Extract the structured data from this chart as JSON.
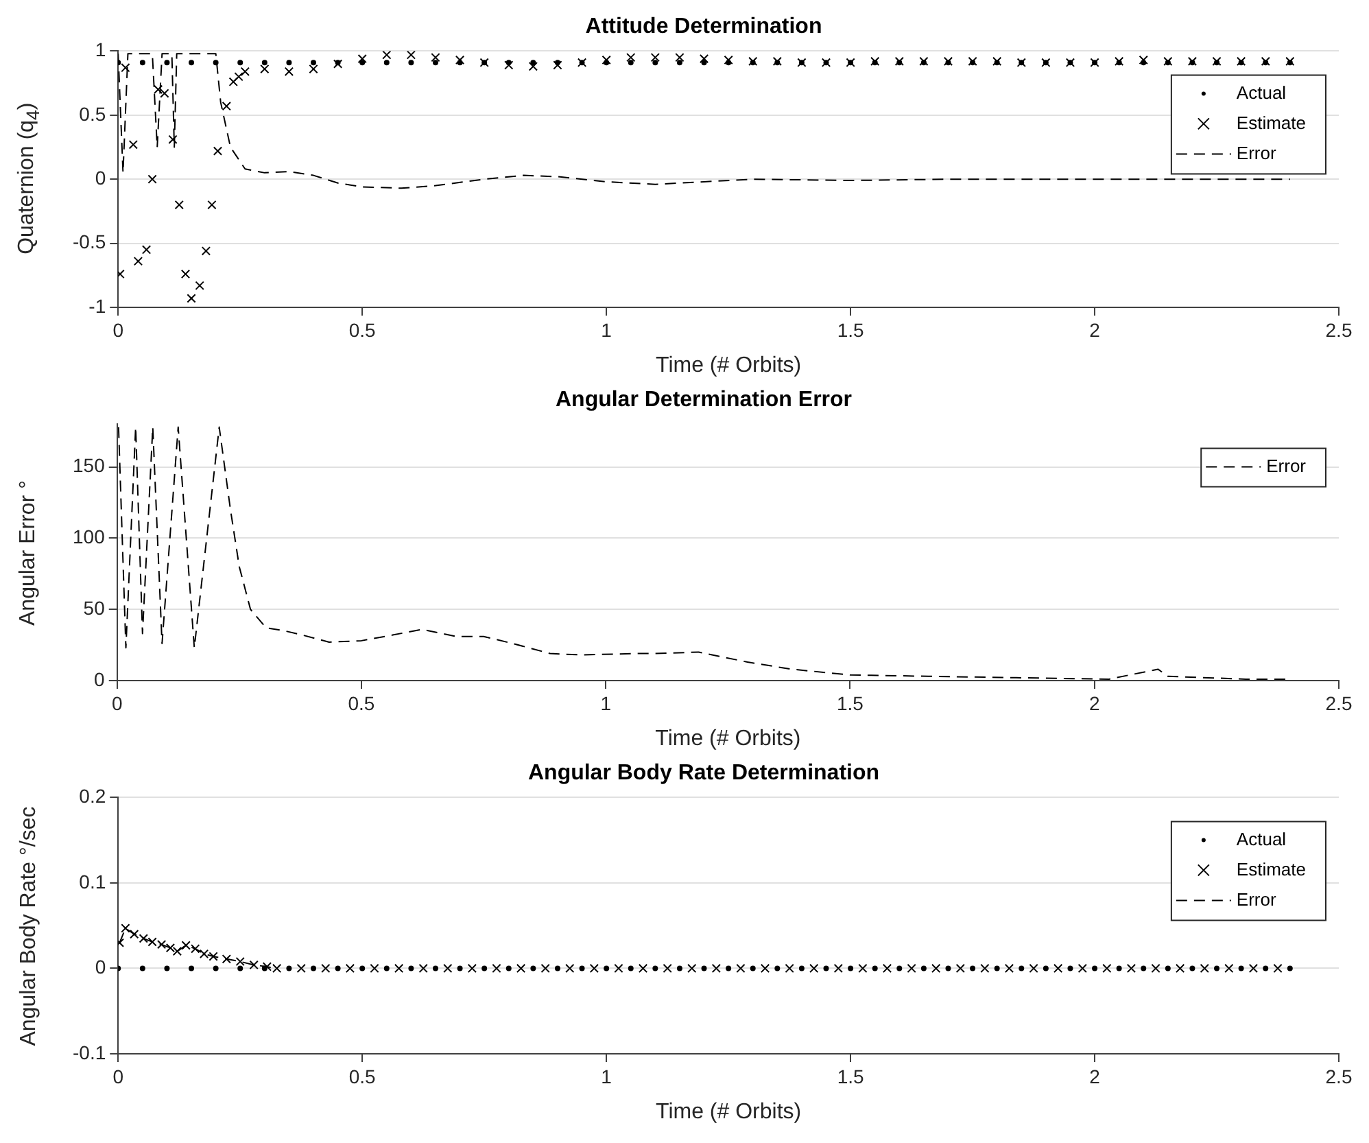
{
  "chart_data": [
    {
      "type": "scatter",
      "title": "Attitude Determination",
      "xlabel": "Time (# Orbits)",
      "ylabel": "Quaternion (q$_{4}$)",
      "xlim": [
        0,
        2.5
      ],
      "xticks": [
        0,
        0.5,
        1,
        1.5,
        2,
        2.5
      ],
      "ylim": [
        -1,
        1
      ],
      "yticks": [
        -1,
        -0.5,
        0,
        0.5,
        1
      ],
      "grid": "y",
      "legend": "top right",
      "series": [
        {
          "name": "Actual",
          "marker": "circle",
          "color": "#000000",
          "x": [
            0,
            0.05,
            0.1,
            0.15,
            0.2,
            0.25,
            0.3,
            0.35,
            0.4,
            0.45,
            0.5,
            0.55,
            0.6,
            0.65,
            0.7,
            0.75,
            0.8,
            0.85,
            0.9,
            0.95,
            1,
            1.05,
            1.1,
            1.15,
            1.2,
            1.25,
            1.3,
            1.35,
            1.4,
            1.45,
            1.5,
            1.55,
            1.6,
            1.65,
            1.7,
            1.75,
            1.8,
            1.85,
            1.9,
            1.95,
            2,
            2.05,
            2.1,
            2.15,
            2.2,
            2.25,
            2.3,
            2.35,
            2.4
          ],
          "values": [
            0.91,
            0.91,
            0.91,
            0.91,
            0.91,
            0.91,
            0.91,
            0.91,
            0.91,
            0.91,
            0.91,
            0.91,
            0.91,
            0.91,
            0.91,
            0.91,
            0.91,
            0.91,
            0.91,
            0.91,
            0.91,
            0.91,
            0.91,
            0.91,
            0.91,
            0.91,
            0.91,
            0.91,
            0.91,
            0.91,
            0.91,
            0.91,
            0.91,
            0.91,
            0.91,
            0.91,
            0.91,
            0.91,
            0.91,
            0.91,
            0.91,
            0.91,
            0.91,
            0.91,
            0.91,
            0.91,
            0.91,
            0.91,
            0.91
          ]
        },
        {
          "name": "Estimate",
          "marker": "cross",
          "color": "#000000",
          "x": [
            0.004,
            0.015,
            0.031,
            0.041,
            0.058,
            0.07,
            0.082,
            0.095,
            0.112,
            0.125,
            0.138,
            0.15,
            0.167,
            0.18,
            0.192,
            0.204,
            0.222,
            0.236,
            0.247,
            0.26,
            0.3,
            0.35,
            0.4,
            0.45,
            0.5,
            0.55,
            0.6,
            0.65,
            0.7,
            0.75,
            0.8,
            0.85,
            0.9,
            0.95,
            1,
            1.05,
            1.1,
            1.15,
            1.2,
            1.25,
            1.3,
            1.35,
            1.4,
            1.45,
            1.5,
            1.55,
            1.6,
            1.65,
            1.7,
            1.75,
            1.8,
            1.85,
            1.9,
            1.95,
            2,
            2.05,
            2.1,
            2.15,
            2.2,
            2.25,
            2.3,
            2.35,
            2.4
          ],
          "values": [
            -0.74,
            0.87,
            0.27,
            -0.64,
            -0.55,
            0,
            0.7,
            0.67,
            0.31,
            -0.2,
            -0.74,
            -0.93,
            -0.83,
            -0.56,
            -0.2,
            0.22,
            0.57,
            0.76,
            0.8,
            0.84,
            0.86,
            0.84,
            0.86,
            0.9,
            0.94,
            0.97,
            0.97,
            0.95,
            0.93,
            0.91,
            0.89,
            0.88,
            0.89,
            0.91,
            0.93,
            0.95,
            0.95,
            0.95,
            0.94,
            0.93,
            0.92,
            0.92,
            0.91,
            0.91,
            0.91,
            0.92,
            0.92,
            0.92,
            0.92,
            0.92,
            0.92,
            0.91,
            0.91,
            0.91,
            0.91,
            0.92,
            0.93,
            0.92,
            0.92,
            0.92,
            0.92,
            0.92,
            0.92
          ]
        },
        {
          "name": "Error",
          "type": "line",
          "line_style": "dashed",
          "marker": "none",
          "color": "#000000",
          "x": [
            0,
            0.01,
            0.02,
            0.07,
            0.08,
            0.09,
            0.11,
            0.115,
            0.12,
            0.2,
            0.21,
            0.23,
            0.26,
            0.3,
            0.35,
            0.4,
            0.45,
            0.5,
            0.58,
            0.65,
            0.75,
            0.83,
            0.9,
            1,
            1.1,
            1.2,
            1.3,
            1.5,
            1.7,
            2,
            2.4
          ],
          "values": [
            0.98,
            0.05,
            0.98,
            0.98,
            0.25,
            0.98,
            0.98,
            0.25,
            0.98,
            0.98,
            0.6,
            0.25,
            0.08,
            0.05,
            0.06,
            0.03,
            -0.03,
            -0.06,
            -0.07,
            -0.05,
            0,
            0.03,
            0.02,
            -0.02,
            -0.04,
            -0.02,
            0,
            -0.01,
            0,
            0,
            0
          ]
        }
      ]
    },
    {
      "type": "line",
      "title": "Angular Determination Error",
      "xlabel": "Time (# Orbits)",
      "ylabel": "Angular Error °",
      "xlim": [
        0,
        2.5
      ],
      "xticks": [
        0,
        0.5,
        1,
        1.5,
        2,
        2.5
      ],
      "ylim": [
        0,
        180
      ],
      "yticks": [
        0,
        50,
        100,
        150
      ],
      "grid": "y",
      "legend": "top right",
      "series": [
        {
          "name": "Error",
          "line_style": "dashed",
          "marker": "none",
          "color": "#000000",
          "x": [
            0.003,
            0.018,
            0.038,
            0.052,
            0.073,
            0.092,
            0.125,
            0.158,
            0.209,
            0.232,
            0.25,
            0.273,
            0.305,
            0.342,
            0.379,
            0.434,
            0.5,
            0.564,
            0.624,
            0.693,
            0.75,
            0.81,
            0.886,
            0.95,
            1.06,
            1.1,
            1.19,
            1.29,
            1.38,
            1.5,
            1.66,
            1.84,
            2.03,
            2.13,
            2.15,
            2.31,
            2.4
          ],
          "values": [
            178,
            23,
            178,
            33,
            178,
            26,
            178,
            23,
            178,
            120,
            80,
            50,
            37,
            35,
            32,
            27,
            28,
            32,
            36,
            31,
            31,
            26,
            19,
            18,
            19,
            19,
            20,
            13,
            8,
            4,
            3,
            2,
            1,
            8,
            3,
            1,
            1
          ]
        }
      ]
    },
    {
      "type": "scatter",
      "title": "Angular Body Rate Determination",
      "xlabel": "Time (# Orbits)",
      "ylabel": "Angular Body Rate °/sec",
      "xlim": [
        0,
        2.5
      ],
      "xticks": [
        0,
        0.5,
        1,
        1.5,
        2,
        2.5
      ],
      "ylim": [
        -0.1,
        0.2
      ],
      "yticks": [
        -0.1,
        0,
        0.1,
        0.2
      ],
      "grid": "y",
      "legend": "top right",
      "series": [
        {
          "name": "Actual",
          "marker": "circle",
          "color": "#000000",
          "x": [
            0,
            0.05,
            0.1,
            0.15,
            0.2,
            0.25,
            0.3,
            0.35,
            0.4,
            0.45,
            0.5,
            0.55,
            0.6,
            0.65,
            0.7,
            0.75,
            0.8,
            0.85,
            0.9,
            0.95,
            1,
            1.05,
            1.1,
            1.15,
            1.2,
            1.25,
            1.3,
            1.35,
            1.4,
            1.45,
            1.5,
            1.55,
            1.6,
            1.65,
            1.7,
            1.75,
            1.8,
            1.85,
            1.9,
            1.95,
            2,
            2.05,
            2.1,
            2.15,
            2.2,
            2.25,
            2.3,
            2.35,
            2.4
          ],
          "values": [
            0,
            0,
            0,
            0,
            0,
            0,
            0,
            0,
            0,
            0,
            0,
            0,
            0,
            0,
            0,
            0,
            0,
            0,
            0,
            0,
            0,
            0,
            0,
            0,
            0,
            0,
            0,
            0,
            0,
            0,
            0,
            0,
            0,
            0,
            0,
            0,
            0,
            0,
            0,
            0,
            0,
            0,
            0,
            0,
            0,
            0,
            0,
            0,
            0
          ]
        },
        {
          "name": "Estimate",
          "marker": "cross",
          "color": "#000000",
          "x": [
            0.003,
            0.015,
            0.033,
            0.052,
            0.07,
            0.089,
            0.107,
            0.121,
            0.139,
            0.158,
            0.176,
            0.195,
            0.222,
            0.25,
            0.278,
            0.305,
            0.325,
            0.375,
            0.425,
            0.475,
            0.525,
            0.575,
            0.625,
            0.675,
            0.725,
            0.775,
            0.825,
            0.875,
            0.925,
            0.975,
            1.025,
            1.075,
            1.125,
            1.175,
            1.225,
            1.275,
            1.325,
            1.375,
            1.425,
            1.475,
            1.525,
            1.575,
            1.625,
            1.675,
            1.725,
            1.775,
            1.825,
            1.875,
            1.925,
            1.975,
            2.025,
            2.075,
            2.125,
            2.175,
            2.225,
            2.275,
            2.325,
            2.375
          ],
          "values": [
            0.03,
            0.047,
            0.04,
            0.035,
            0.031,
            0.028,
            0.024,
            0.02,
            0.027,
            0.023,
            0.017,
            0.014,
            0.011,
            0.008,
            0.004,
            0.002,
            0,
            0,
            0,
            0,
            0,
            0,
            0,
            0,
            0,
            0,
            0,
            0,
            0,
            0,
            0,
            0,
            0,
            0,
            0,
            0,
            0,
            0,
            0,
            0,
            0,
            0,
            0,
            0,
            0,
            0,
            0,
            0,
            0,
            0,
            0,
            0,
            0,
            0,
            0,
            0,
            0,
            0
          ]
        },
        {
          "name": "Error",
          "type": "line",
          "line_style": "dashed",
          "marker": "none",
          "color": "#000000",
          "x": [
            0.003,
            0.015,
            0.033,
            0.052,
            0.07,
            0.089,
            0.107,
            0.121,
            0.139,
            0.158,
            0.176,
            0.195,
            0.222,
            0.25,
            0.278,
            0.305,
            0.32
          ],
          "values": [
            0.03,
            0.047,
            0.04,
            0.035,
            0.031,
            0.028,
            0.024,
            0.02,
            0.027,
            0.023,
            0.017,
            0.014,
            0.011,
            0.008,
            0.004,
            0.002,
            0
          ]
        }
      ]
    }
  ]
}
